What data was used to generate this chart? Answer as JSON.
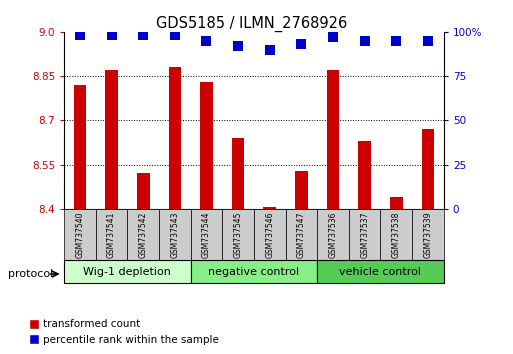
{
  "title": "GDS5185 / ILMN_2768926",
  "samples": [
    "GSM737540",
    "GSM737541",
    "GSM737542",
    "GSM737543",
    "GSM737544",
    "GSM737545",
    "GSM737546",
    "GSM737547",
    "GSM737536",
    "GSM737537",
    "GSM737538",
    "GSM737539"
  ],
  "red_values": [
    8.82,
    8.87,
    8.52,
    8.88,
    8.83,
    8.64,
    8.405,
    8.53,
    8.87,
    8.63,
    8.44,
    8.67
  ],
  "blue_values": [
    98,
    98,
    98,
    98,
    95,
    92,
    90,
    93,
    97,
    95,
    95,
    95
  ],
  "ylim_left": [
    8.4,
    9.0
  ],
  "ylim_right": [
    0,
    100
  ],
  "yticks_left": [
    8.4,
    8.55,
    8.7,
    8.85,
    9.0
  ],
  "yticks_right": [
    0,
    25,
    50,
    75,
    100
  ],
  "bar_color": "#cc0000",
  "dot_color": "#0000cc",
  "bar_width": 0.4,
  "dot_size": 55,
  "dot_marker": "s",
  "grid_color": "#000000",
  "left_tick_color": "#cc0000",
  "right_tick_color": "#0000cc",
  "legend_red_label": "transformed count",
  "legend_blue_label": "percentile rank within the sample",
  "protocol_label": "protocol",
  "sample_box_color": "#cccccc",
  "group_defs": [
    [
      0,
      3,
      "Wig-1 depletion",
      "#ccffcc"
    ],
    [
      4,
      7,
      "negative control",
      "#88ee88"
    ],
    [
      8,
      11,
      "vehicle control",
      "#55cc55"
    ]
  ]
}
